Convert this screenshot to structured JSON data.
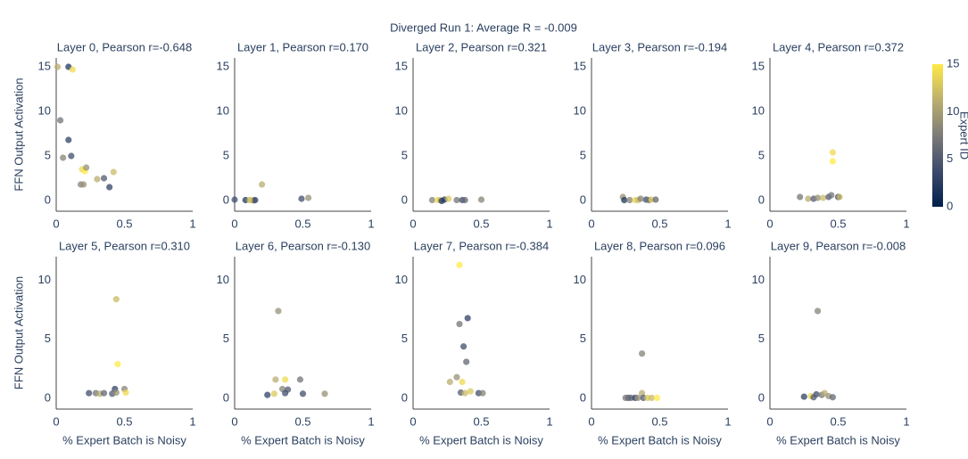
{
  "title": "Diverged Run 1: Average R = -0.009",
  "colorbar": {
    "title": "Expert ID",
    "cmin": 0,
    "cmax": 15,
    "ticks": [
      0,
      5,
      10,
      15
    ],
    "colorscale": [
      [
        0,
        "#00204c"
      ],
      [
        0.25,
        "#3c4a6b"
      ],
      [
        0.5,
        "#7c7b78"
      ],
      [
        0.75,
        "#bcaf6f"
      ],
      [
        1,
        "#ffe945"
      ]
    ]
  },
  "chart_data": [
    {
      "type": "scatter",
      "title": "Layer 0, Pearson r=-0.648",
      "ylabel": "FFN Output Activation",
      "x": [
        0.01,
        0.09,
        0.12,
        0.03,
        0.09,
        0.05,
        0.11,
        0.19,
        0.21,
        0.22,
        0.18,
        0.2,
        0.3,
        0.35,
        0.39,
        0.42
      ],
      "y": [
        15,
        15,
        14.7,
        9,
        6.8,
        4.8,
        5,
        3.5,
        3.3,
        3.7,
        1.8,
        1.8,
        2.4,
        2.5,
        1.5,
        3.2
      ],
      "expert_id": [
        11,
        2,
        14,
        7,
        3,
        8,
        4,
        14,
        15,
        9,
        8,
        9,
        11,
        5,
        3,
        12
      ],
      "xlim": [
        0,
        1
      ],
      "xticks": [
        0,
        0.5,
        1
      ],
      "ylim": [
        -1.2,
        16
      ],
      "yticks": [
        0,
        5,
        10,
        15
      ]
    },
    {
      "type": "scatter",
      "title": "Layer 1, Pearson r=0.170",
      "x": [
        0.0,
        0.08,
        0.12,
        0.14,
        0.15,
        0.2,
        0.49,
        0.54,
        0.11
      ],
      "y": [
        0.1,
        0.05,
        0.05,
        0.0,
        0.05,
        1.8,
        0.2,
        0.3,
        0.05
      ],
      "expert_id": [
        4,
        2,
        14,
        8,
        3,
        11,
        4,
        9,
        12
      ],
      "xlim": [
        0,
        1
      ],
      "xticks": [
        0,
        0.5,
        1
      ],
      "ylim": [
        -1.2,
        16
      ],
      "yticks": [
        0,
        5,
        10,
        15
      ]
    },
    {
      "type": "scatter",
      "title": "Layer 2, Pearson r=0.321",
      "x": [
        0.14,
        0.18,
        0.2,
        0.23,
        0.26,
        0.32,
        0.36,
        0.38,
        0.5,
        0.21
      ],
      "y": [
        0.05,
        0.05,
        0.05,
        0.1,
        0.2,
        0.05,
        0.05,
        0.05,
        0.1,
        -0.05
      ],
      "expert_id": [
        8,
        14,
        12,
        3,
        13,
        7,
        4,
        6,
        8,
        2
      ],
      "xlim": [
        0,
        1
      ],
      "xticks": [
        0,
        0.5,
        1
      ],
      "ylim": [
        -1.2,
        16
      ],
      "yticks": [
        0,
        5,
        10,
        15
      ]
    },
    {
      "type": "scatter",
      "title": "Layer 3, Pearson r=-0.194",
      "x": [
        0.23,
        0.24,
        0.28,
        0.32,
        0.34,
        0.4,
        0.42,
        0.44,
        0.47,
        0.36
      ],
      "y": [
        0.4,
        0.05,
        0.05,
        0.05,
        0.05,
        0.1,
        0.05,
        0.1,
        0.1,
        0.2
      ],
      "expert_id": [
        9,
        2,
        8,
        14,
        12,
        4,
        7,
        13,
        6,
        8
      ],
      "xlim": [
        0,
        1
      ],
      "xticks": [
        0,
        0.5,
        1
      ],
      "ylim": [
        -1.2,
        16
      ],
      "yticks": [
        0,
        5,
        10,
        15
      ]
    },
    {
      "type": "scatter",
      "title": "Layer 4, Pearson r=0.372",
      "x": [
        0.22,
        0.28,
        0.32,
        0.35,
        0.39,
        0.43,
        0.45,
        0.5,
        0.46,
        0.46,
        0.51
      ],
      "y": [
        0.4,
        0.2,
        0.2,
        0.3,
        0.3,
        0.4,
        0.6,
        0.4,
        5.4,
        4.4,
        0.4
      ],
      "expert_id": [
        7,
        11,
        5,
        9,
        12,
        5,
        7,
        3,
        14,
        15,
        12
      ],
      "xlim": [
        0,
        1
      ],
      "xticks": [
        0,
        0.5,
        1
      ],
      "ylim": [
        -1.2,
        16
      ],
      "yticks": [
        0,
        5,
        10,
        15
      ]
    },
    {
      "type": "scatter",
      "title": "Layer 5, Pearson r=0.310",
      "ylabel": "FFN Output Activation",
      "xlabel": "% Expert Batch is Noisy",
      "x": [
        0.44,
        0.45,
        0.43,
        0.5,
        0.51,
        0.24,
        0.29,
        0.32,
        0.35,
        0.41,
        0.44
      ],
      "y": [
        8.4,
        2.9,
        0.8,
        0.8,
        0.5,
        0.45,
        0.45,
        0.4,
        0.45,
        0.4,
        0.5
      ],
      "expert_id": [
        12,
        15,
        3,
        8,
        14,
        4,
        7,
        11,
        6,
        5,
        9
      ],
      "xlim": [
        0,
        1
      ],
      "xticks": [
        0,
        0.5,
        1
      ],
      "ylim": [
        -0.9,
        12
      ],
      "yticks": [
        0,
        5,
        10
      ]
    },
    {
      "type": "scatter",
      "title": "Layer 6, Pearson r=-0.130",
      "xlabel": "% Expert Batch is Noisy",
      "x": [
        0.32,
        0.3,
        0.37,
        0.48,
        0.35,
        0.39,
        0.37,
        0.29,
        0.24,
        0.5,
        0.66
      ],
      "y": [
        7.4,
        1.6,
        1.6,
        1.6,
        0.8,
        0.75,
        0.45,
        0.4,
        0.3,
        0.4,
        0.4
      ],
      "expert_id": [
        9,
        11,
        14,
        7,
        8,
        5,
        4,
        13,
        3,
        4,
        9
      ],
      "xlim": [
        0,
        1
      ],
      "xticks": [
        0,
        0.5,
        1
      ],
      "ylim": [
        -0.9,
        12
      ],
      "yticks": [
        0,
        5,
        10
      ]
    },
    {
      "type": "scatter",
      "title": "Layer 7, Pearson r=-0.384",
      "xlabel": "% Expert Batch is Noisy",
      "x": [
        0.34,
        0.4,
        0.34,
        0.37,
        0.39,
        0.32,
        0.27,
        0.36,
        0.35,
        0.38,
        0.42,
        0.48,
        0.51
      ],
      "y": [
        11.3,
        6.8,
        6.3,
        4.4,
        3.1,
        1.8,
        1.4,
        1.4,
        0.5,
        0.45,
        0.6,
        0.45,
        0.45
      ],
      "expert_id": [
        15,
        3,
        7,
        4,
        6,
        9,
        11,
        14,
        5,
        12,
        13,
        4,
        8
      ],
      "xlim": [
        0,
        1
      ],
      "xticks": [
        0,
        0.5,
        1
      ],
      "ylim": [
        -0.9,
        12
      ],
      "yticks": [
        0,
        5,
        10
      ]
    },
    {
      "type": "scatter",
      "title": "Layer 8, Pearson r=0.096",
      "xlabel": "% Expert Batch is Noisy",
      "x": [
        0.37,
        0.37,
        0.27,
        0.29,
        0.32,
        0.34,
        0.38,
        0.41,
        0.44,
        0.48,
        0.25
      ],
      "y": [
        3.8,
        0.45,
        0.05,
        0.05,
        0.05,
        0.05,
        0.05,
        0.05,
        0.05,
        0.05,
        0.05
      ],
      "expert_id": [
        8,
        11,
        4,
        6,
        3,
        9,
        5,
        13,
        12,
        15,
        7
      ],
      "xlim": [
        0,
        1
      ],
      "xticks": [
        0,
        0.5,
        1
      ],
      "ylim": [
        -0.9,
        12
      ],
      "yticks": [
        0,
        5,
        10
      ]
    },
    {
      "type": "scatter",
      "title": "Layer 9, Pearson r=-0.008",
      "xlabel": "% Expert Batch is Noisy",
      "x": [
        0.35,
        0.25,
        0.3,
        0.34,
        0.38,
        0.4,
        0.43,
        0.46,
        0.32
      ],
      "y": [
        7.4,
        0.15,
        0.2,
        0.35,
        0.3,
        0.45,
        0.2,
        0.1,
        0.1
      ],
      "expert_id": [
        8,
        3,
        14,
        4,
        7,
        11,
        9,
        6,
        5
      ],
      "xlim": [
        0,
        1
      ],
      "xticks": [
        0,
        0.5,
        1
      ],
      "ylim": [
        -0.9,
        12
      ],
      "yticks": [
        0,
        5,
        10
      ]
    }
  ]
}
